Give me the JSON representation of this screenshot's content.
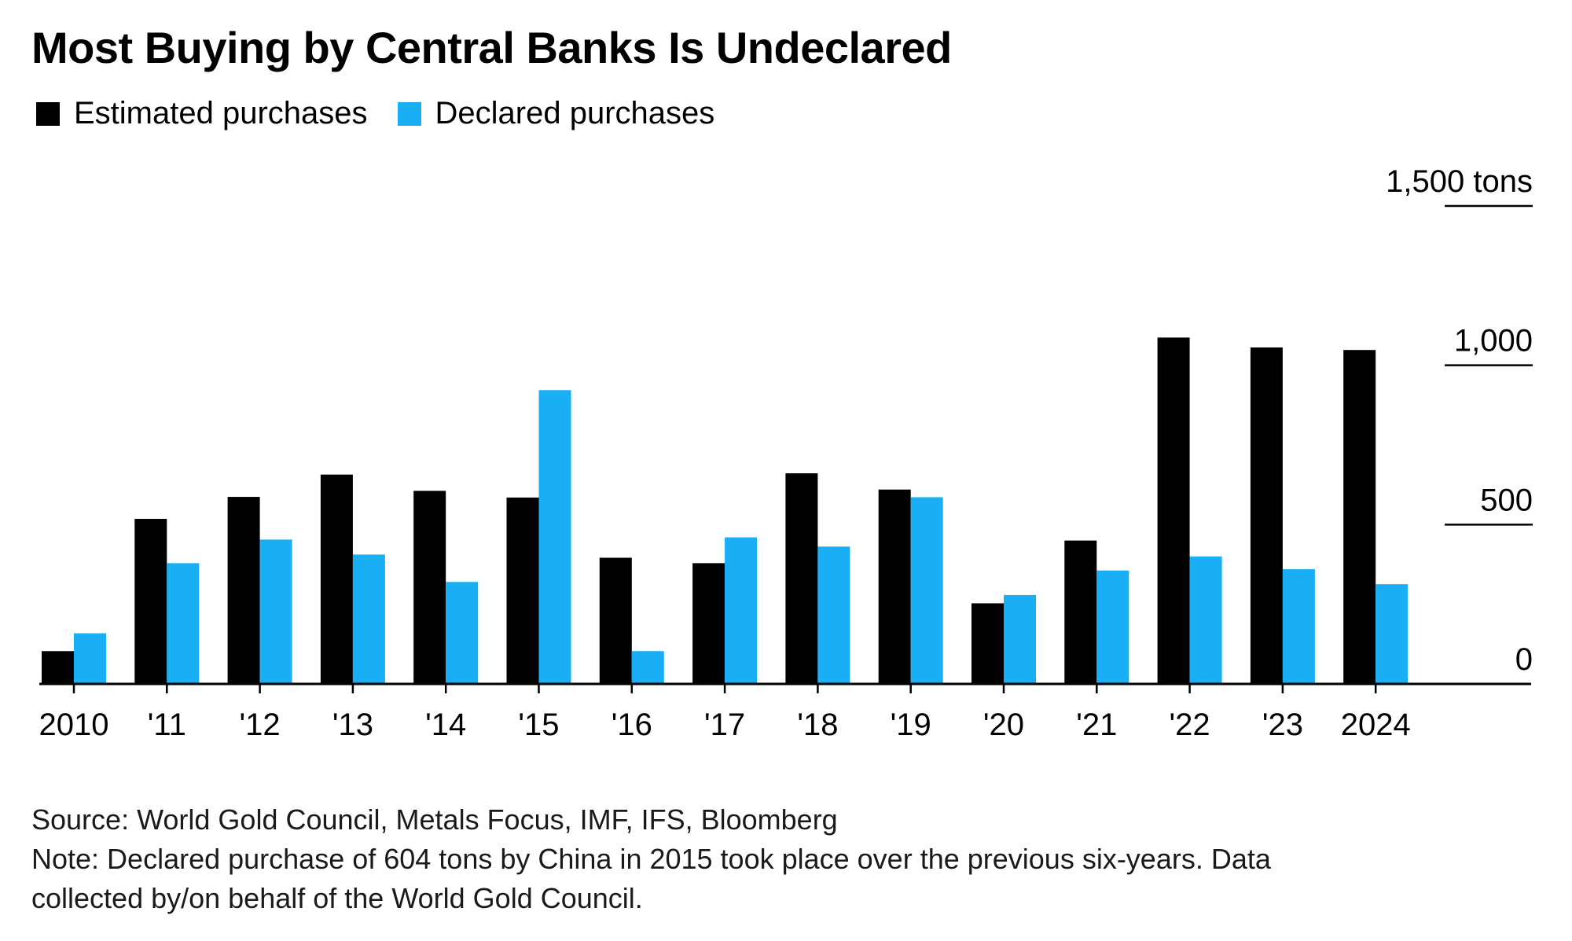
{
  "title": "Most Buying by Central Banks Is Undeclared",
  "legend": [
    {
      "label": "Estimated purchases",
      "color": "#000000"
    },
    {
      "label": "Declared purchases",
      "color": "#1AAEF5"
    }
  ],
  "source": "Source: World Gold Council, Metals Focus, IMF, IFS, Bloomberg",
  "note_line1": "Note: Declared purchase of 604 tons by China in 2015 took place over the previous six-years. Data",
  "note_line2": "collected by/on behalf of the World Gold Council.",
  "chart_data": {
    "type": "bar",
    "categories": [
      "2010",
      "'11",
      "'12",
      "'13",
      "'14",
      "'15",
      "'16",
      "'17",
      "'18",
      "'19",
      "'20",
      "'21",
      "'22",
      "'23",
      "2024"
    ],
    "series": [
      {
        "name": "Estimated purchases",
        "color": "#000000",
        "values": [
          103,
          518,
          587,
          657,
          606,
          585,
          396,
          379,
          661,
          610,
          253,
          450,
          1087,
          1056,
          1048
        ]
      },
      {
        "name": "Declared purchases",
        "color": "#1AAEF5",
        "values": [
          159,
          379,
          453,
          406,
          320,
          922,
          103,
          460,
          431,
          586,
          279,
          356,
          400,
          360,
          313
        ]
      }
    ],
    "y_ticks": [
      "0",
      "500",
      "1,000",
      "1,500"
    ],
    "y_tick_values": [
      0,
      500,
      1000,
      1500
    ],
    "y_unit": "tons",
    "ylim": [
      0,
      1500
    ],
    "y_axis_side": "right",
    "grid": false,
    "legend_position": "top-left"
  }
}
